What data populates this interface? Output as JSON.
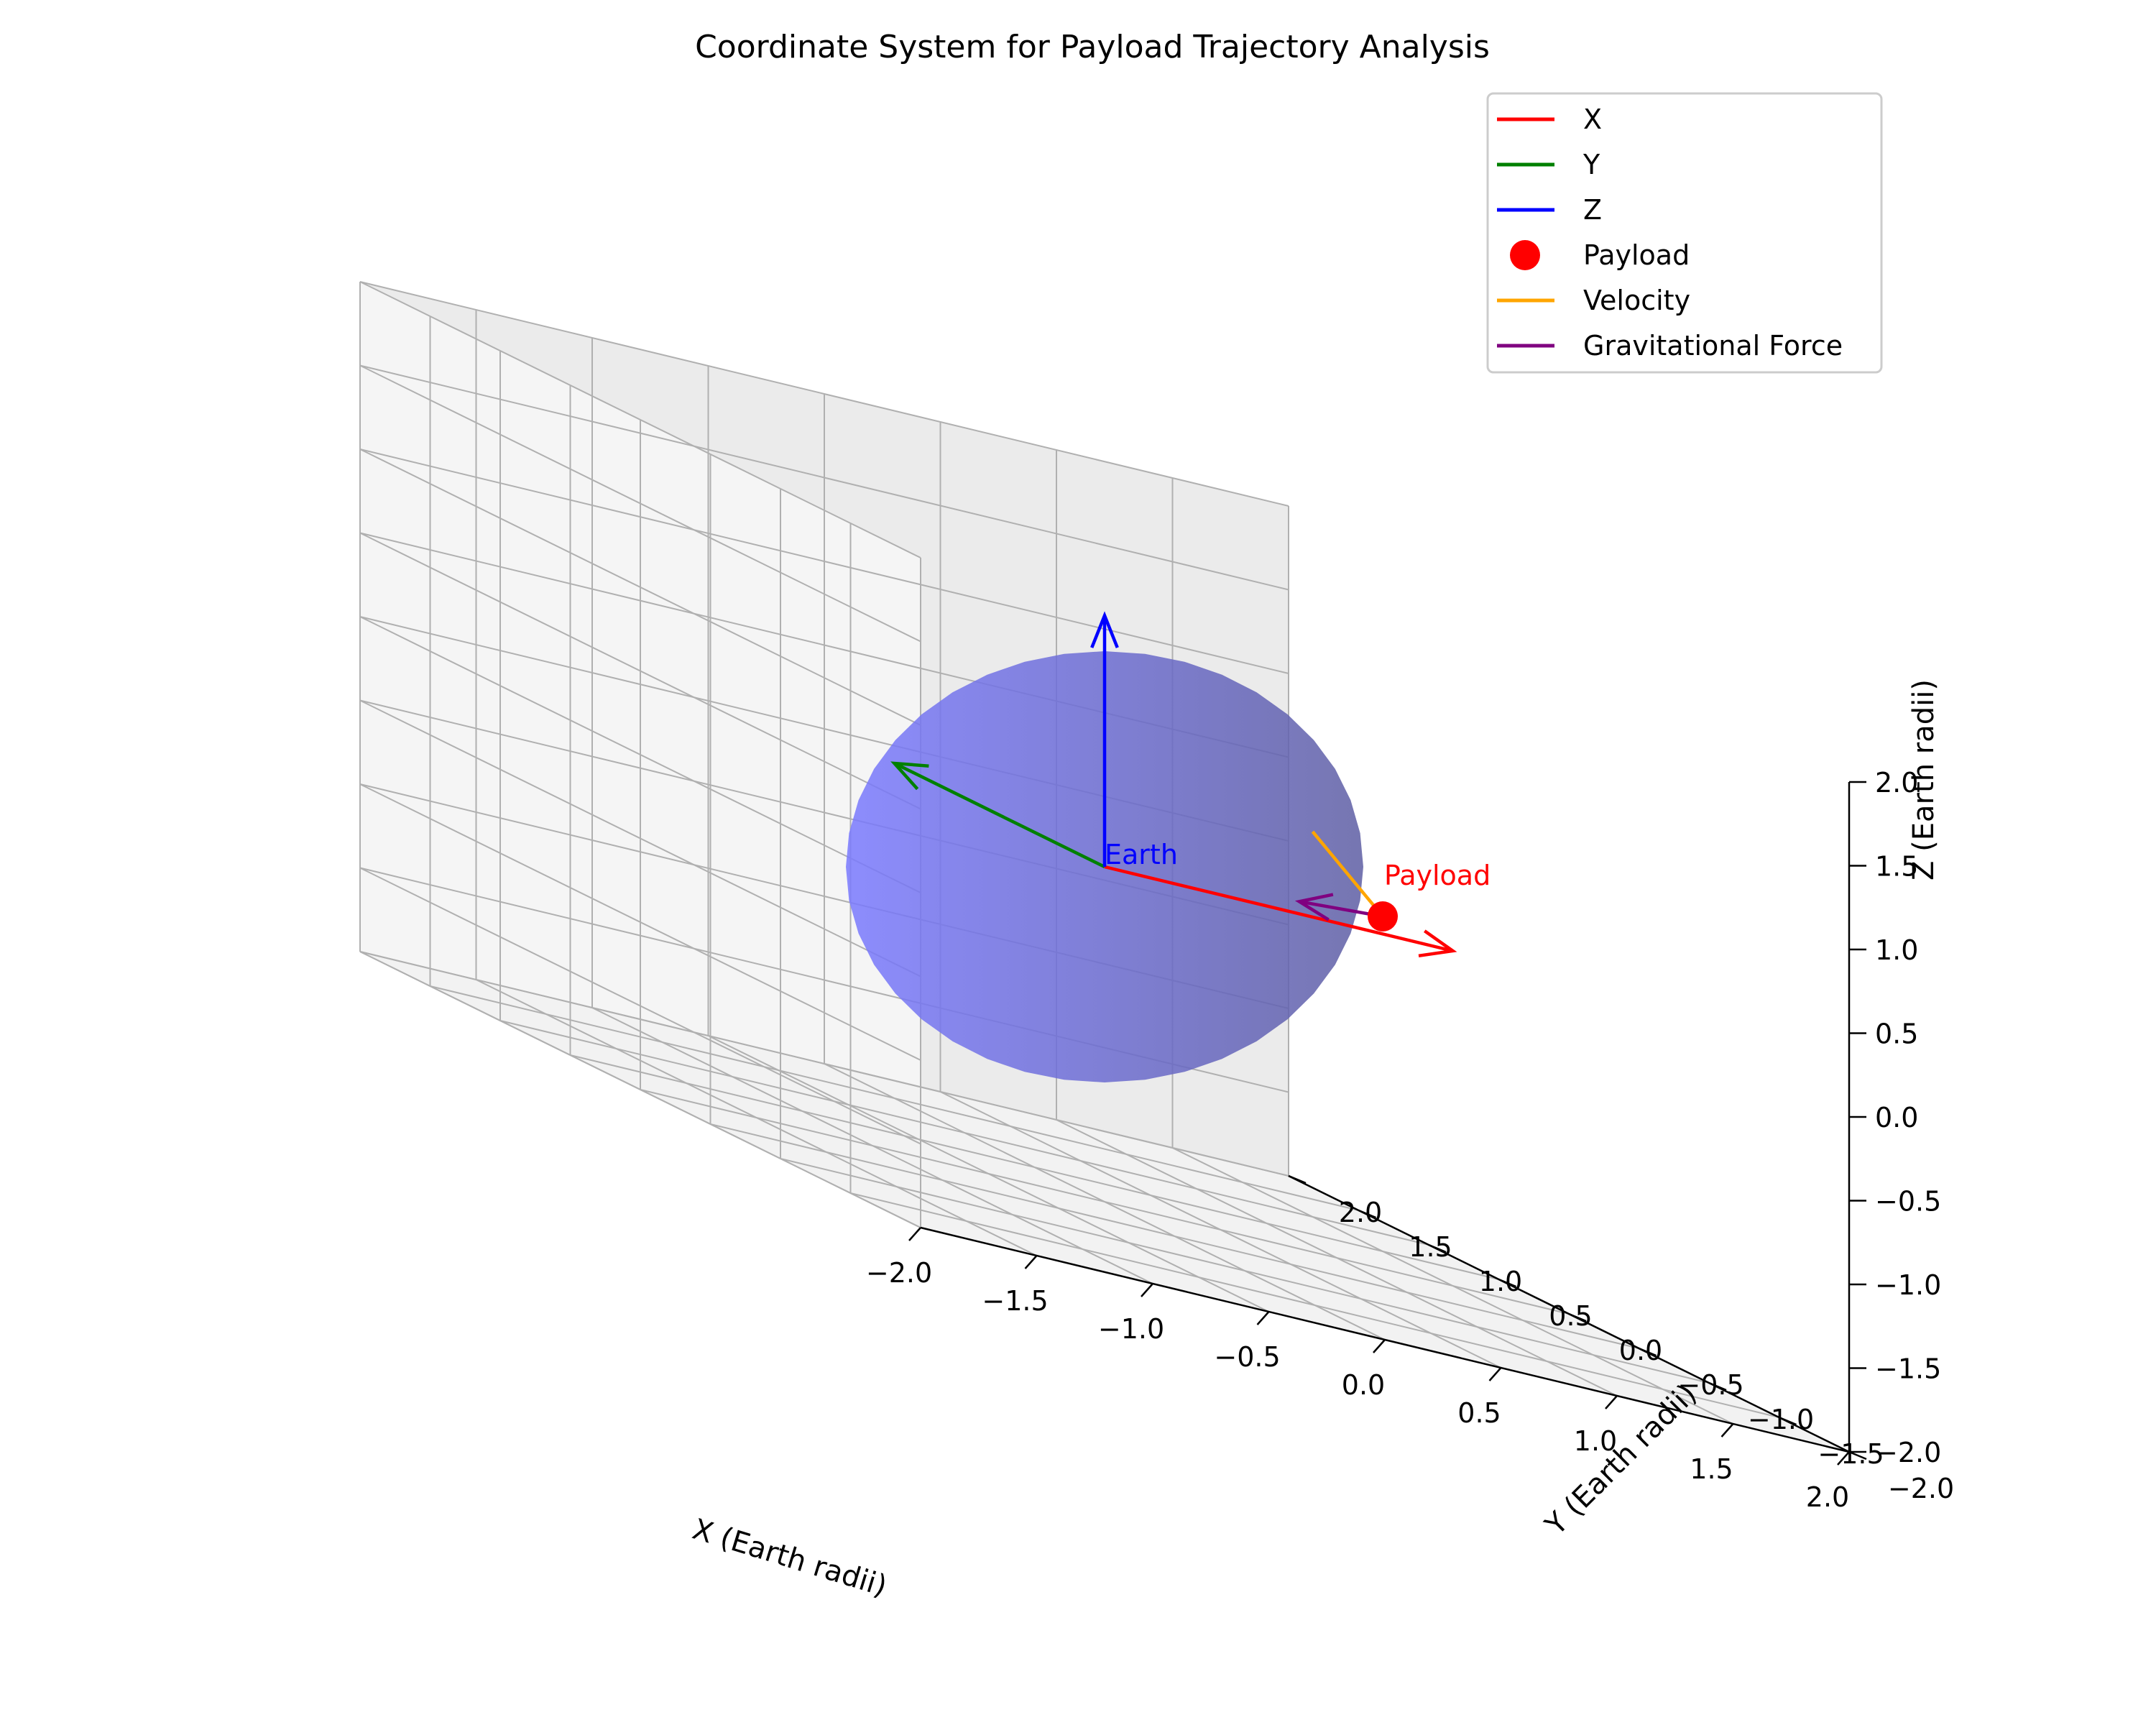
{
  "chart_data": {
    "type": "scatter",
    "projection": "3d",
    "title": "Coordinate System for Payload Trajectory Analysis",
    "xlabel": "X (Earth radii)",
    "ylabel": "Y (Earth radii)",
    "zlabel": "Z (Earth radii)",
    "xlim": [
      -2,
      2
    ],
    "ylim": [
      -2,
      2
    ],
    "zlim": [
      -2,
      2
    ],
    "grid": true,
    "legend_position": "top-right",
    "x_ticks": [
      "−2.0",
      "−1.5",
      "−1.0",
      "−0.5",
      "0.0",
      "0.5",
      "1.0",
      "1.5",
      "2.0"
    ],
    "y_ticks": [
      "−2.0",
      "−1.5",
      "−1.0",
      "−0.5",
      "0.0",
      "0.5",
      "1.0",
      "1.5",
      "2.0"
    ],
    "z_ticks": [
      "−2.0",
      "−1.5",
      "−1.0",
      "−0.5",
      "0.0",
      "0.5",
      "1.0",
      "1.5",
      "2.0"
    ],
    "earth": {
      "center": [
        0,
        0,
        0
      ],
      "radius": 1,
      "color": "#0000ff",
      "opacity": 0.5,
      "label": "Earth"
    },
    "axis_vectors": [
      {
        "name": "X",
        "from": [
          0,
          0,
          0
        ],
        "to": [
          1.5,
          0,
          0
        ],
        "color": "#ff0000"
      },
      {
        "name": "Y",
        "from": [
          0,
          0,
          0
        ],
        "to": [
          0,
          1.5,
          0
        ],
        "color": "#008000"
      },
      {
        "name": "Z",
        "from": [
          0,
          0,
          0
        ],
        "to": [
          0,
          0,
          1.5
        ],
        "color": "#0000ff"
      }
    ],
    "payload": {
      "name": "Payload",
      "position": [
        1.5,
        0.5,
        0
      ],
      "color": "#ff0000",
      "label": "Payload"
    },
    "velocity": {
      "name": "Velocity",
      "from": [
        1.5,
        0.5,
        0
      ],
      "to": [
        1.5,
        1.0,
        0.3
      ],
      "color": "#ffa500"
    },
    "gravitational_force": {
      "name": "Gravitational Force",
      "from": [
        1.5,
        0.5,
        0
      ],
      "to": [
        1.05,
        0.35,
        0
      ],
      "color": "#800080"
    },
    "legend": [
      {
        "label": "X",
        "marker": "line",
        "color": "#ff0000"
      },
      {
        "label": "Y",
        "marker": "line",
        "color": "#008000"
      },
      {
        "label": "Z",
        "marker": "line",
        "color": "#0000ff"
      },
      {
        "label": "Payload",
        "marker": "dot",
        "color": "#ff0000"
      },
      {
        "label": "Velocity",
        "marker": "line",
        "color": "#ffa500"
      },
      {
        "label": "Gravitational Force",
        "marker": "line",
        "color": "#800080"
      }
    ]
  }
}
